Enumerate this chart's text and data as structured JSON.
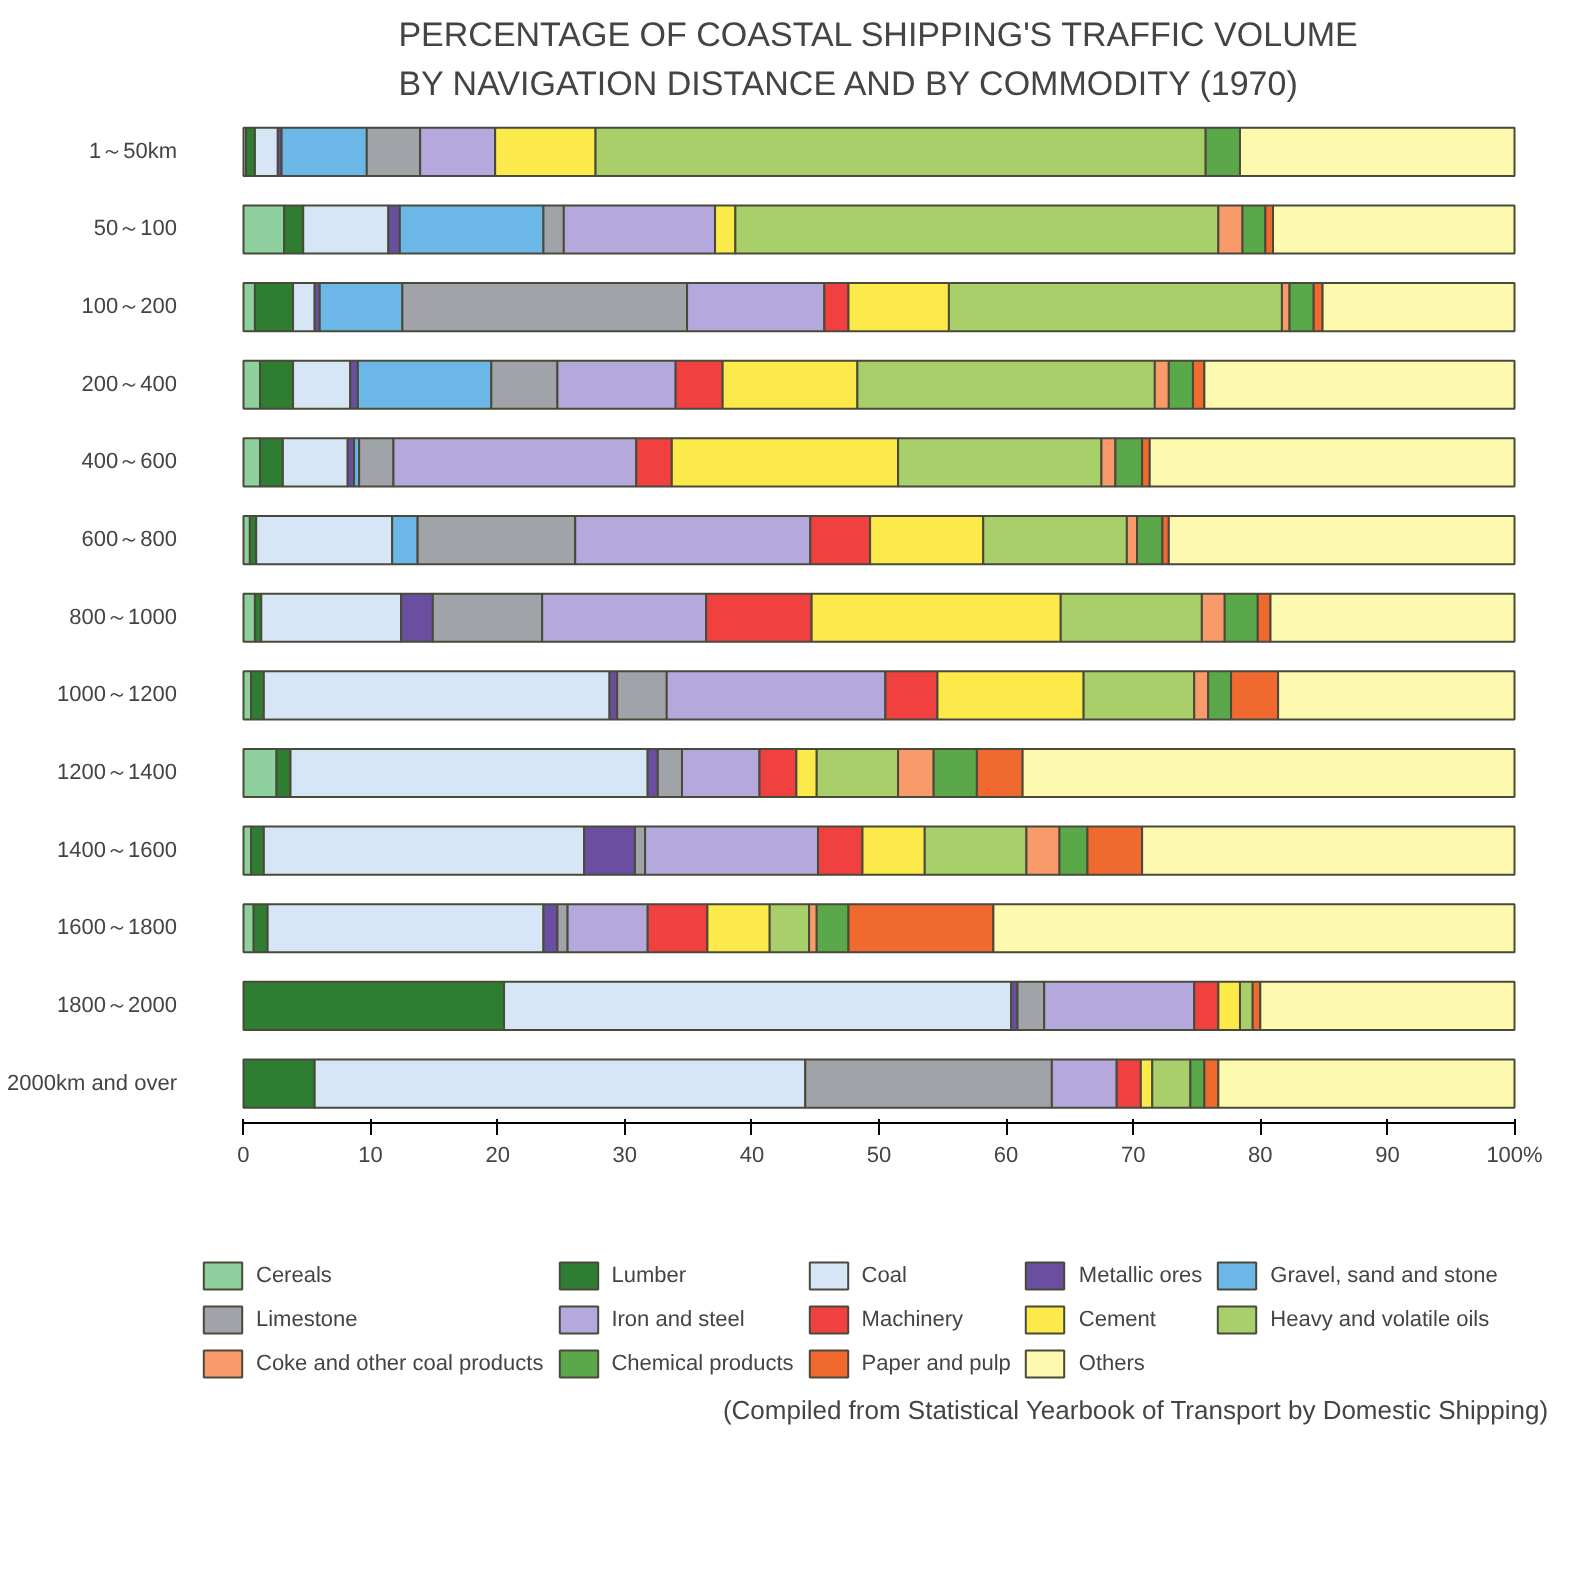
{
  "chart_data": {
    "type": "bar",
    "orientation": "horizontal",
    "stacked": true,
    "title": "PERCENTAGE OF COASTAL SHIPPING'S TRAFFIC VOLUME BY NAVIGATION DISTANCE AND BY COMMODITY (1970)",
    "categories": [
      "1～50km",
      "50～100",
      "100～200",
      "200～400",
      "400～600",
      "600～800",
      "800～1000",
      "1000～1200",
      "1200～1400",
      "1400～1600",
      "1600～1800",
      "1800～2000",
      "2000km and over"
    ],
    "xlim": [
      0,
      100
    ],
    "xticks": [
      0,
      10,
      20,
      30,
      40,
      50,
      60,
      70,
      80,
      90,
      {
        "value": 100,
        "label": "100%"
      }
    ],
    "grid": false,
    "legend": "bottom",
    "annotations": [
      "(Compiled from Statistical Yearbook of Transport by Domestic Shipping)"
    ],
    "series": [
      {
        "name": "Cereals",
        "color": "#8fd19e",
        "values": [
          0.2,
          3.2,
          0.9,
          1.3,
          1.3,
          0.5,
          0.9,
          0.6,
          2.6,
          0.6,
          0.8,
          0,
          0
        ]
      },
      {
        "name": "Lumber",
        "color": "#2e7d32",
        "values": [
          0.7,
          1.5,
          3.0,
          2.6,
          1.8,
          0.5,
          0.5,
          1.0,
          1.1,
          1.0,
          1.1,
          20.5,
          5.6
        ]
      },
      {
        "name": "Coal",
        "color": "#d6e6f7",
        "values": [
          1.8,
          6.7,
          1.7,
          4.5,
          5.1,
          10.7,
          11.0,
          27.2,
          28.1,
          25.2,
          21.7,
          39.9,
          38.6
        ]
      },
      {
        "name": "Metallic ores",
        "color": "#6a4fa0",
        "values": [
          0.3,
          0.9,
          0.4,
          0.6,
          0.5,
          0,
          2.5,
          0.6,
          0.8,
          4.0,
          1.1,
          0.5,
          0
        ]
      },
      {
        "name": "Gravel, sand and stone",
        "color": "#6bb8e8",
        "values": [
          6.7,
          11.3,
          6.5,
          10.5,
          0.4,
          2.0,
          0,
          0,
          0,
          0,
          0,
          0,
          0
        ]
      },
      {
        "name": "Limestone",
        "color": "#a0a4a8",
        "values": [
          4.2,
          1.6,
          22.4,
          5.2,
          2.7,
          12.4,
          8.6,
          3.9,
          1.9,
          0.8,
          0.8,
          2.1,
          19.4
        ]
      },
      {
        "name": "Iron and steel",
        "color": "#b4a8dc",
        "values": [
          5.9,
          11.9,
          10.8,
          9.3,
          19.1,
          18.5,
          12.9,
          17.2,
          6.1,
          13.6,
          6.3,
          11.8,
          5.1
        ]
      },
      {
        "name": "Machinery",
        "color": "#f04040",
        "values": [
          0,
          0,
          1.9,
          3.7,
          2.8,
          4.7,
          8.3,
          4.1,
          2.9,
          3.5,
          4.7,
          1.9,
          1.9
        ]
      },
      {
        "name": "Cement",
        "color": "#fce94a",
        "values": [
          7.9,
          1.6,
          7.9,
          10.6,
          17.8,
          8.9,
          19.6,
          11.5,
          1.6,
          4.9,
          4.9,
          1.7,
          0.9
        ]
      },
      {
        "name": "Heavy and volatile oils",
        "color": "#a8cf6a",
        "values": [
          48.0,
          38.0,
          26.2,
          23.4,
          16.0,
          11.3,
          11.1,
          8.7,
          6.4,
          8.0,
          3.1,
          1.0,
          3.0
        ]
      },
      {
        "name": "Coke and other coal products",
        "color": "#f89a6a",
        "values": [
          0,
          1.9,
          0.6,
          1.1,
          1.1,
          0.8,
          1.8,
          1.1,
          2.8,
          2.6,
          0.6,
          0,
          0
        ]
      },
      {
        "name": "Chemical products",
        "color": "#5aa84a",
        "values": [
          2.7,
          1.8,
          1.9,
          1.9,
          2.1,
          2.0,
          2.6,
          1.8,
          3.4,
          2.2,
          2.5,
          0,
          1.1
        ]
      },
      {
        "name": "Paper and pulp",
        "color": "#f06a30",
        "values": [
          0,
          0.6,
          0.7,
          0.9,
          0.6,
          0.5,
          1.0,
          3.7,
          3.6,
          4.3,
          11.4,
          0.6,
          1.1
        ]
      },
      {
        "name": "Others",
        "color": "#fdfab0",
        "values": [
          21.6,
          19.0,
          15.1,
          24.4,
          28.7,
          27.2,
          19.2,
          18.6,
          38.7,
          29.3,
          41.0,
          20.0,
          23.3
        ]
      }
    ]
  }
}
